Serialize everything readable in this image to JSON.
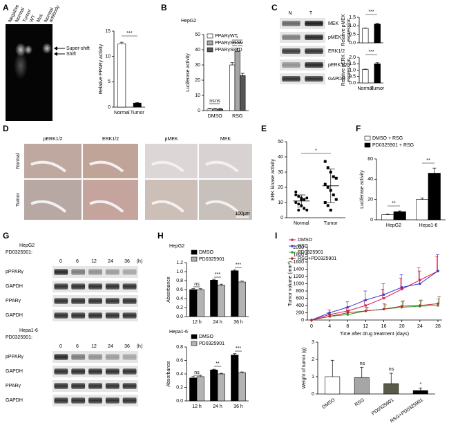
{
  "panel_labels": [
    "A",
    "B",
    "C",
    "D",
    "E",
    "F",
    "G",
    "H",
    "I"
  ],
  "gel": {
    "lanes": [
      "Negative",
      "Normal",
      "Tumor",
      "WT",
      "Mut.",
      [
        "Normal",
        "antibody"
      ]
    ],
    "arrows": [
      "Super-shift",
      "Shift"
    ]
  },
  "blot_c": {
    "lanes": [
      "N",
      "T"
    ],
    "rows": [
      "MEK",
      "pMEK",
      "ERK1/2",
      "pERK1/2",
      "GAPDH"
    ]
  },
  "ihc": {
    "columns": [
      "pERK1/2",
      "ERK1/2",
      "pMEK",
      "MEK"
    ],
    "rows": [
      "Normal",
      "Tumor"
    ],
    "scale": "100µm"
  },
  "blot_g": [
    {
      "cell": "HepG2",
      "treatment": "PD0325901:",
      "times": [
        "0",
        "6",
        "12",
        "24",
        "36"
      ],
      "unit": "(h)",
      "rows": [
        "pPPARγ",
        "GAPDH",
        "PPARγ",
        "GAPDH"
      ]
    },
    {
      "cell": "Hepa1-6",
      "treatment": "PD0325901:",
      "times": [
        "0",
        "6",
        "12",
        "24",
        "36"
      ],
      "unit": "(h)",
      "rows": [
        "pPPARγ",
        "GAPDH",
        "PPARγ",
        "GAPDH"
      ]
    }
  ],
  "chart_data": [
    {
      "type": "bar",
      "ylabel": "Relative PPARγ activity",
      "categories": [
        "Normal",
        "Tumor"
      ],
      "values": [
        12.5,
        0.8
      ],
      "errors": [
        0.3,
        0.1
      ],
      "colors": [
        "#ffffff",
        "#000000"
      ],
      "ylim": [
        0,
        15
      ],
      "yticks": [
        0,
        5,
        10,
        15
      ],
      "annotations": [
        "***"
      ]
    },
    {
      "type": "bar",
      "title": "HepG2",
      "ylabel": "Luciferase activity",
      "categories": [
        "DMSO",
        "RSG"
      ],
      "series": [
        {
          "name": "PPARγWT",
          "color": "#ffffff",
          "values": [
            1,
            30
          ],
          "errors": [
            0.3,
            1.5
          ]
        },
        {
          "name": "PPARγS84A",
          "color": "#a6a6a6",
          "values": [
            1,
            39
          ],
          "errors": [
            0.3,
            2
          ]
        },
        {
          "name": "PPARγS84D",
          "color": "#555555",
          "values": [
            1,
            23
          ],
          "errors": [
            0.3,
            1.5
          ]
        }
      ],
      "ylim": [
        0,
        50
      ],
      "yticks": [
        0,
        10,
        20,
        30,
        40,
        50
      ],
      "annotations": [
        "ns",
        "ns",
        "*",
        "**",
        "***"
      ]
    },
    {
      "type": "bar",
      "ylabel": [
        "Relative pMEK",
        "expression"
      ],
      "values": [
        0.85,
        1.1
      ],
      "errors": [
        0.02,
        0.05
      ],
      "colors": [
        "#ffffff",
        "#000000"
      ],
      "ylim": [
        0,
        1.5
      ],
      "yticks": [
        {
          "value": 0,
          "label": "0.0"
        },
        {
          "value": 0.5,
          "label": "0.5"
        },
        {
          "value": 1,
          "label": "1.0"
        },
        {
          "value": 1.5,
          "label": "1.5"
        }
      ],
      "annotations": [
        "***"
      ]
    },
    {
      "type": "bar",
      "ylabel": [
        "Relative pERK",
        "expression"
      ],
      "categories": [
        "Normal",
        "Tumor"
      ],
      "values": [
        1.05,
        1.5
      ],
      "errors": [
        0.03,
        0.08
      ],
      "colors": [
        "#ffffff",
        "#000000"
      ],
      "ylim": [
        0,
        2
      ],
      "yticks": [
        {
          "value": 0,
          "label": "0.0"
        },
        {
          "value": 0.5,
          "label": "0.5"
        },
        {
          "value": 1,
          "label": "1.0"
        },
        {
          "value": 1.5,
          "label": "1.5"
        },
        {
          "value": 2,
          "label": "2.0"
        }
      ],
      "annotations": [
        "***"
      ]
    },
    {
      "type": "scatter",
      "ylabel": "ERK kinase activity",
      "categories": [
        "Normal",
        "Tumor"
      ],
      "values": [
        [
          15,
          14,
          13,
          12,
          13,
          10,
          9,
          8,
          6,
          5,
          17,
          5,
          12
        ],
        [
          37,
          33,
          30,
          27,
          26,
          22,
          20,
          18,
          15,
          12,
          10,
          8,
          5
        ]
      ],
      "means": [
        11,
        21
      ],
      "sd": [
        4,
        11
      ],
      "ylim": [
        0,
        50
      ],
      "yticks": [
        0,
        10,
        20,
        30,
        40,
        50
      ],
      "annotations": [
        "*"
      ]
    },
    {
      "type": "bar",
      "ylabel": "Luciferase activity",
      "categories": [
        "HepG2",
        "Hepa1-6"
      ],
      "series": [
        {
          "name": "DMSO + RSG",
          "color": "#ffffff",
          "values": [
            5,
            20
          ],
          "errors": [
            0.5,
            1.5
          ]
        },
        {
          "name": "PD0325901 + RSG",
          "color": "#000000",
          "values": [
            8,
            46
          ],
          "errors": [
            0.8,
            5
          ]
        }
      ],
      "ylim": [
        0,
        60
      ],
      "yticks": [
        0,
        20,
        40,
        60
      ],
      "annotations": [
        "**",
        "**"
      ]
    },
    {
      "type": "bar",
      "title": "HepG2",
      "ylabel": "Absorbance",
      "categories": [
        "12 h",
        "24 h",
        "36 h"
      ],
      "series": [
        {
          "name": "DMSO",
          "color": "#000000",
          "values": [
            0.6,
            0.81,
            1.02
          ],
          "errors": [
            0.02,
            0.02,
            0.02
          ]
        },
        {
          "name": "PD0325901",
          "color": "#b3b3b3",
          "values": [
            0.6,
            0.7,
            0.77
          ],
          "errors": [
            0.02,
            0.02,
            0.02
          ]
        }
      ],
      "ylim": [
        0,
        1.2
      ],
      "yticks": [
        {
          "value": 0,
          "label": "0.0"
        },
        {
          "value": 0.2,
          "label": "0.2"
        },
        {
          "value": 0.4,
          "label": "0.4"
        },
        {
          "value": 0.6,
          "label": "0.6"
        },
        {
          "value": 0.8,
          "label": "0.8"
        },
        {
          "value": 1,
          "label": "1.0"
        },
        {
          "value": 1.2,
          "label": "1.2"
        }
      ],
      "annotations": [
        "ns",
        "***",
        "***"
      ]
    },
    {
      "type": "bar",
      "title": "Hepa1-6",
      "ylabel": "Absorbance",
      "categories": [
        "12 h",
        "24 h",
        "36 h"
      ],
      "series": [
        {
          "name": "DMSO",
          "color": "#000000",
          "values": [
            0.34,
            0.46,
            0.68
          ],
          "errors": [
            0.02,
            0.01,
            0.02
          ]
        },
        {
          "name": "PD0325901",
          "color": "#b3b3b3",
          "values": [
            0.36,
            0.4,
            0.42
          ],
          "errors": [
            0.02,
            0.01,
            0.01
          ]
        }
      ],
      "ylim": [
        0,
        0.8
      ],
      "yticks": [
        {
          "value": 0,
          "label": "0.0"
        },
        {
          "value": 0.2,
          "label": "0.2"
        },
        {
          "value": 0.4,
          "label": "0.4"
        },
        {
          "value": 0.6,
          "label": "0.6"
        },
        {
          "value": 0.8,
          "label": "0.8"
        }
      ],
      "annotations": [
        "ns",
        "**",
        "***"
      ]
    },
    {
      "type": "line",
      "ylabel": "Tumor volume (mm³)",
      "xlabel": "Time after drug treatment (days)",
      "x": [
        0,
        4,
        8,
        12,
        16,
        20,
        24,
        28
      ],
      "xlim": [
        0,
        28
      ],
      "xticks": [
        0,
        4,
        8,
        12,
        16,
        20,
        24,
        28
      ],
      "series": [
        {
          "name": "DMSO",
          "color": "#e0205a",
          "values": [
            0,
            150,
            250,
            400,
            600,
            850,
            1100,
            1350
          ],
          "errors": [
            0,
            50,
            100,
            150,
            250,
            300,
            350,
            400
          ]
        },
        {
          "name": "RSG",
          "color": "#3a3acc",
          "values": [
            0,
            200,
            350,
            550,
            700,
            900,
            1000,
            1350
          ],
          "errors": [
            0,
            80,
            150,
            250,
            300,
            350,
            350,
            450
          ]
        },
        {
          "name": "PD0325901",
          "color": "#2ca02c",
          "values": [
            0,
            100,
            150,
            250,
            300,
            350,
            380,
            400
          ],
          "errors": [
            0,
            50,
            80,
            100,
            150,
            150,
            150,
            180
          ]
        },
        {
          "name": "RSG+PD0325901",
          "color": "#b0302a",
          "values": [
            0,
            100,
            200,
            250,
            300,
            380,
            400,
            450
          ],
          "errors": [
            0,
            50,
            80,
            100,
            120,
            150,
            150,
            200
          ]
        }
      ],
      "ylim": [
        0,
        2000
      ],
      "yticks": [
        0,
        200,
        400,
        600,
        800,
        1000,
        1200,
        1400,
        1600,
        1800,
        2000
      ]
    },
    {
      "type": "bar",
      "ylabel": "Weight of tumor (g)",
      "categories": [
        "DMSO",
        "RSG",
        "PD0325901",
        "RSG+PD0325901"
      ],
      "values": [
        1.0,
        0.95,
        0.6,
        0.2
      ],
      "errors": [
        0.95,
        0.6,
        0.6,
        0.15
      ],
      "colors": [
        "#ffffff",
        "#a6a6a6",
        "#5a5a4a",
        "#000000"
      ],
      "ylim": [
        0,
        3
      ],
      "yticks": [
        0,
        1,
        2,
        3
      ],
      "annotations": [
        "ns",
        "ns",
        "*"
      ]
    }
  ]
}
